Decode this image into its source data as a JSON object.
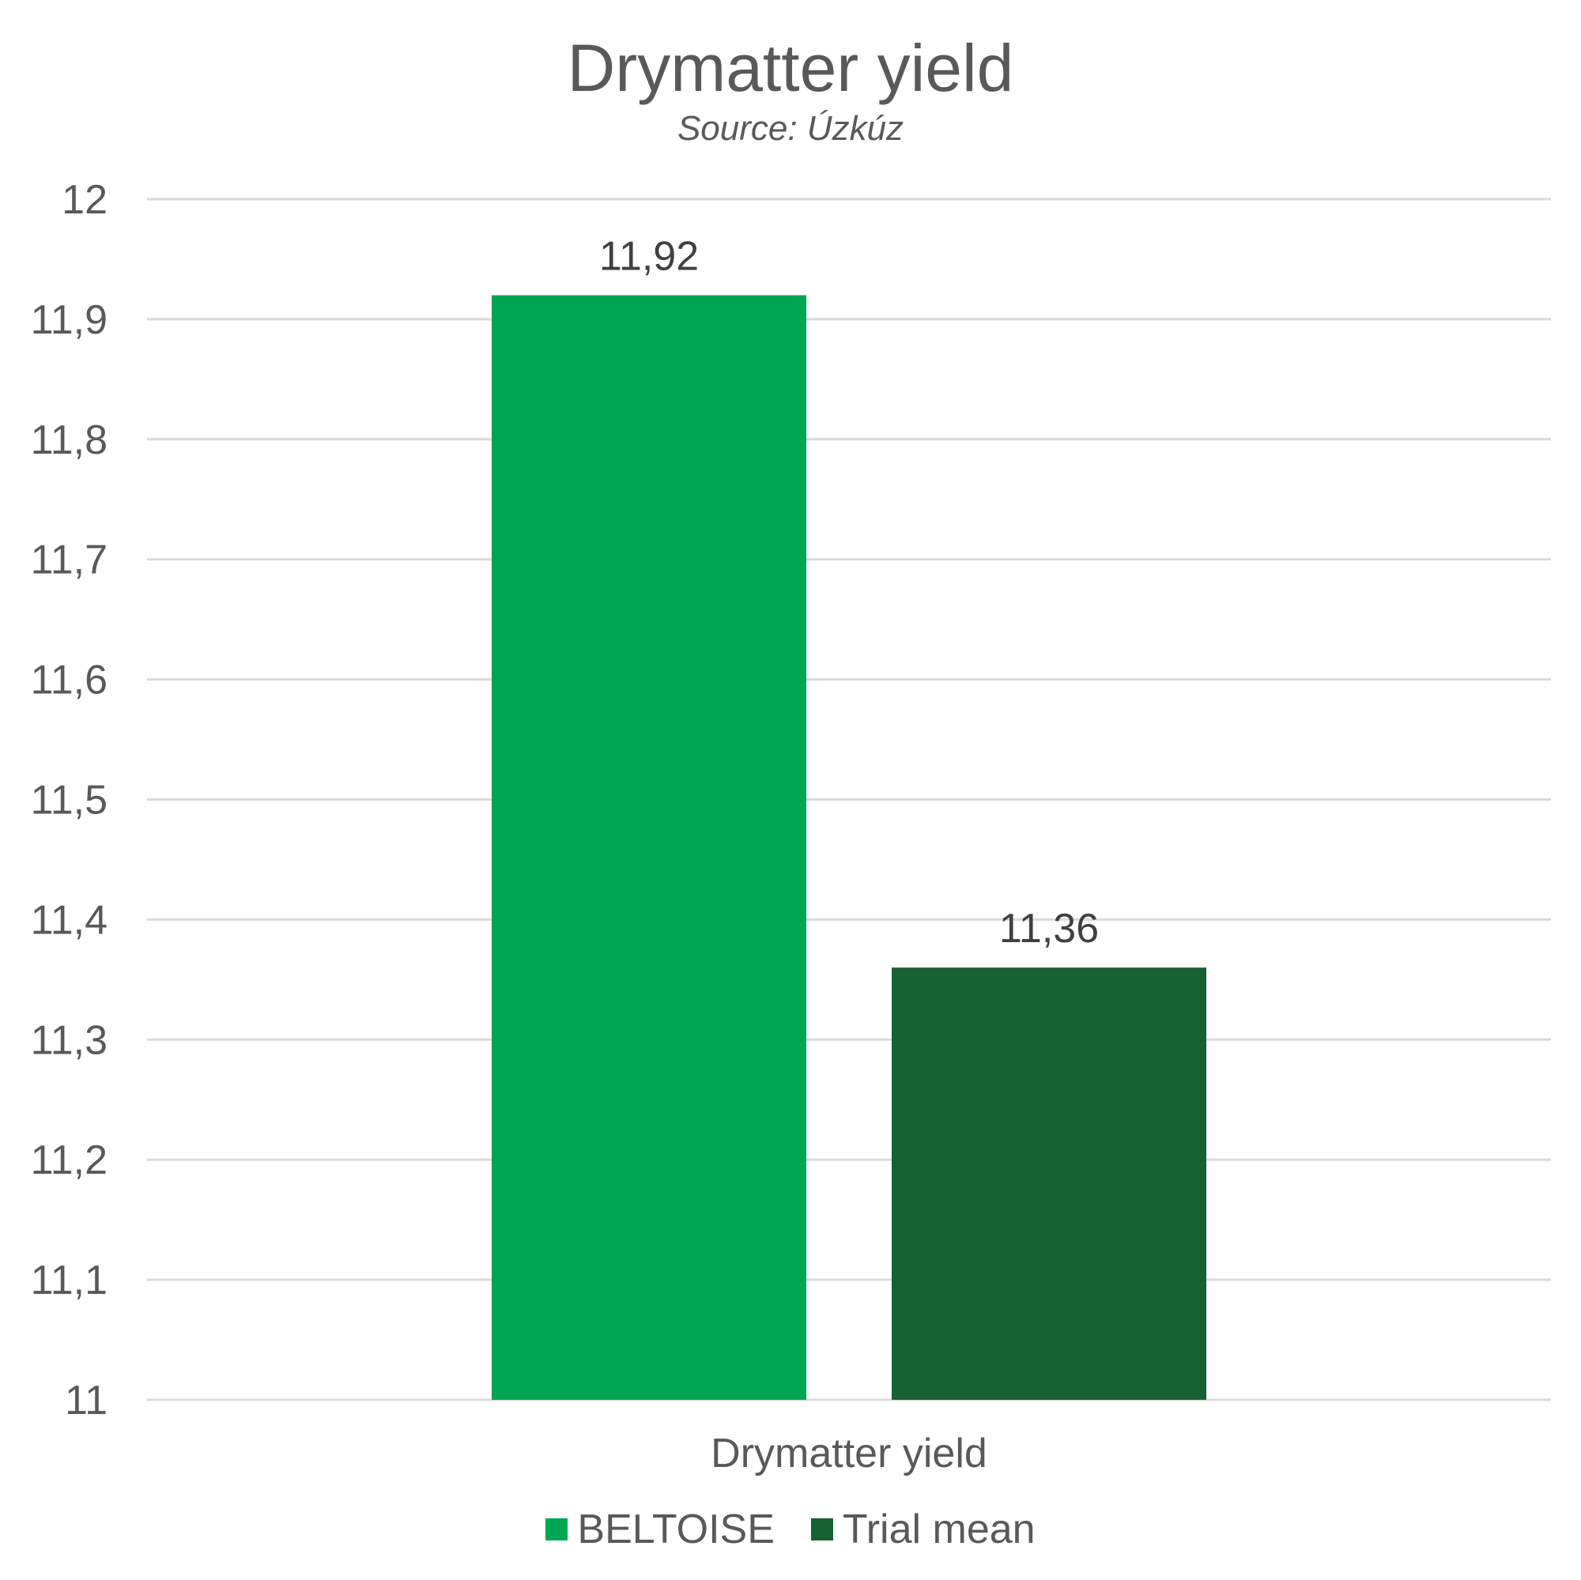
{
  "chart_data": {
    "type": "bar",
    "title": "Drymatter yield",
    "subtitle": "Source: Úzkúz",
    "categories": [
      "Drymatter yield"
    ],
    "series": [
      {
        "name": "BELTOISE",
        "values": [
          11.92
        ],
        "labels": [
          "11,92"
        ],
        "color": "#00A651"
      },
      {
        "name": "Trial mean",
        "values": [
          11.36
        ],
        "labels": [
          "11,36"
        ],
        "color": "#16612F"
      }
    ],
    "xlabel": "",
    "ylabel": "",
    "ylim": [
      11,
      12
    ],
    "yticks": [
      11,
      11.1,
      11.2,
      11.3,
      11.4,
      11.5,
      11.6,
      11.7,
      11.8,
      11.9,
      12
    ],
    "ytick_labels": [
      "11",
      "11,1",
      "11,2",
      "11,3",
      "11,4",
      "11,5",
      "11,6",
      "11,7",
      "11,8",
      "11,9",
      "12"
    ],
    "grid": true,
    "legend_position": "bottom"
  }
}
